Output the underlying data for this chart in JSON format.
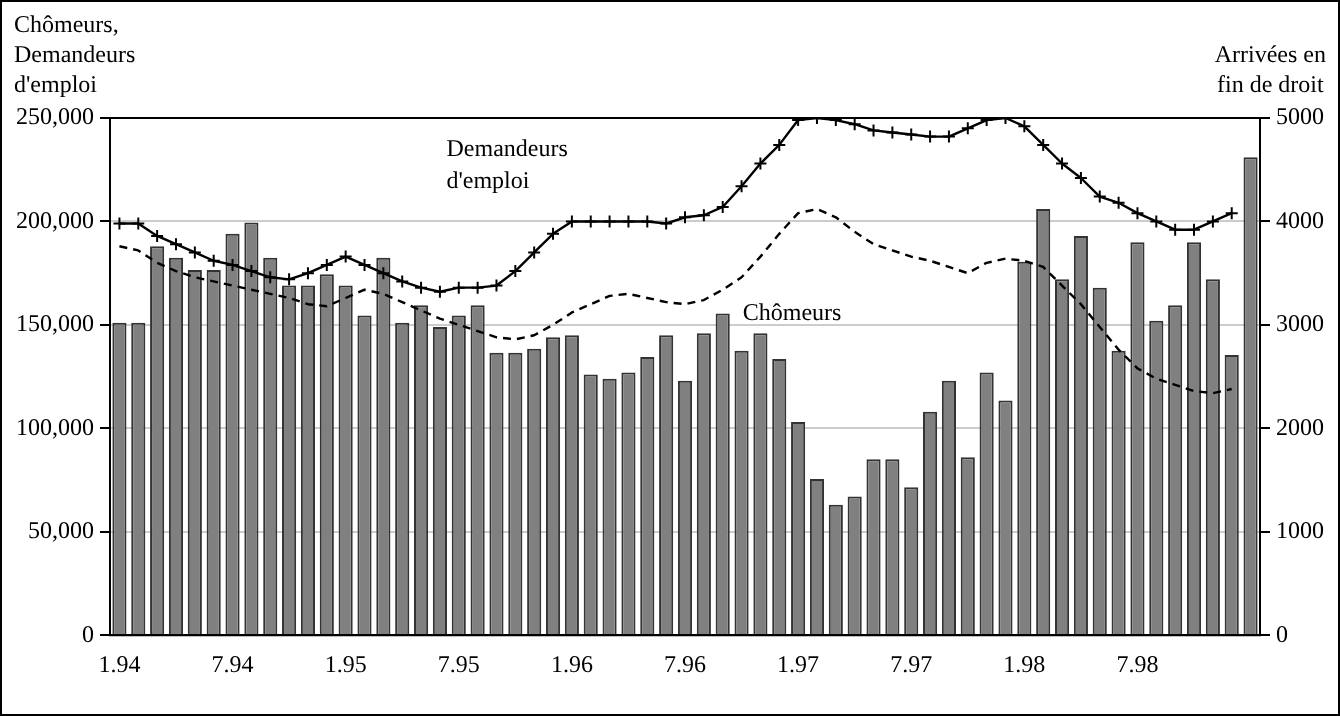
{
  "chart_data": {
    "type": "bar",
    "ylabel": "Chômeurs, Demandeurs d'emploi",
    "y2label": "Arrivées en fin de droit",
    "categories": [
      "1.94",
      null,
      null,
      null,
      null,
      null,
      "7.94",
      null,
      null,
      null,
      null,
      null,
      "1.95",
      null,
      null,
      null,
      null,
      null,
      "7.95",
      null,
      null,
      null,
      null,
      null,
      "1.96",
      null,
      null,
      null,
      null,
      null,
      "7.96",
      null,
      null,
      null,
      null,
      null,
      "1.97",
      null,
      null,
      null,
      null,
      null,
      "7.97",
      null,
      null,
      null,
      null,
      null,
      "1.98",
      null,
      null,
      null,
      null,
      null,
      "7.98",
      null,
      null,
      null,
      null,
      null,
      null
    ],
    "series": [
      {
        "axis": "y2",
        "color": "#808080",
        "values": [
          3020,
          3020,
          3760,
          3650,
          3530,
          3530,
          3880,
          3990,
          3650,
          3380,
          3380,
          3490,
          3380,
          3090,
          3650,
          3020,
          3190,
          2980,
          3090,
          3190,
          2730,
          2730,
          2770,
          2880,
          2900,
          2520,
          2480,
          2540,
          2690,
          2900,
          2460,
          2920,
          3110,
          2750,
          2920,
          2670,
          2060,
          1510,
          1260,
          1340,
          1700,
          1700,
          1430,
          2160,
          2460,
          1720,
          2540,
          2270,
          3610,
          4120,
          3440,
          3860,
          3360,
          2750,
          3800,
          3040,
          3190,
          3800,
          3440,
          2710,
          4620
        ]
      },
      {
        "type": "line",
        "name": "Demandeurs d'emploi",
        "color": "#000000",
        "marker": "cross",
        "line_style": "solid",
        "values": [
          199000,
          199000,
          193000,
          189000,
          185000,
          181000,
          179000,
          176000,
          173000,
          172000,
          175000,
          179000,
          183000,
          179000,
          175000,
          171000,
          168000,
          166000,
          168000,
          168000,
          169000,
          176000,
          185000,
          194000,
          200000,
          200000,
          200000,
          200000,
          200000,
          199000,
          202000,
          203000,
          207000,
          217000,
          228000,
          237000,
          249000,
          250000,
          249000,
          247000,
          244000,
          243000,
          242000,
          241000,
          241000,
          245000,
          249000,
          250000,
          246000,
          237000,
          228000,
          221000,
          212000,
          209000,
          204000,
          200000,
          196000,
          196000,
          200000,
          204000,
          null
        ]
      },
      {
        "type": "line",
        "name": "Chômeurs",
        "color": "#000000",
        "marker": "none",
        "line_style": "dashed",
        "values": [
          188000,
          186000,
          180000,
          176000,
          173000,
          171000,
          169000,
          167000,
          165000,
          163000,
          160000,
          159000,
          163000,
          167000,
          165000,
          161000,
          157000,
          153000,
          150000,
          147000,
          144000,
          143000,
          145000,
          150000,
          156000,
          160000,
          164000,
          165000,
          163000,
          161000,
          160000,
          162000,
          167000,
          173000,
          183000,
          194000,
          204000,
          206000,
          202000,
          195000,
          189000,
          186000,
          183000,
          181000,
          178000,
          175000,
          180000,
          182000,
          181000,
          178000,
          169000,
          160000,
          149000,
          138000,
          129000,
          124000,
          121000,
          118000,
          117000,
          119000,
          null
        ]
      }
    ],
    "ylim": [
      0,
      250000
    ],
    "yticks": [
      0,
      {
        "value": 50000,
        "label": "50,000"
      },
      {
        "value": 100000,
        "label": "100,000"
      },
      {
        "value": 150000,
        "label": "150,000"
      },
      {
        "value": 200000,
        "label": "200,000"
      },
      {
        "value": 250000,
        "label": "250,000"
      }
    ],
    "y2lim": [
      0,
      5000
    ],
    "y2ticks": [
      0,
      1000,
      2000,
      3000,
      4000,
      5000
    ],
    "grid": "y",
    "legend": false
  }
}
